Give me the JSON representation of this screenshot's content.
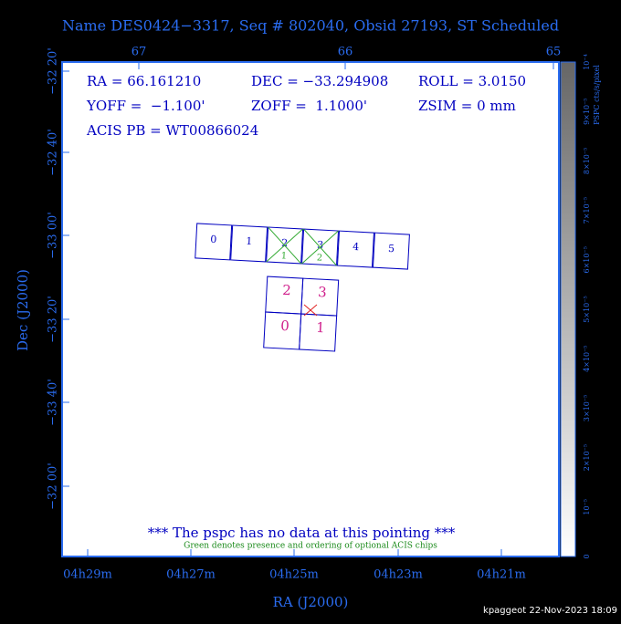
{
  "title": "Name DES0424−3317, Seq # 802040, Obsid 27193, ST Scheduled",
  "top_axis": [
    "67",
    "66",
    "65"
  ],
  "left_axis": [
    "−32 20'",
    "−32 40'",
    "−33 00'",
    "−33 20'",
    "−33 40'",
    "−32 00'"
  ],
  "bottom_axis": [
    "04h29m",
    "04h27m",
    "04h25m",
    "04h23m",
    "04h21m"
  ],
  "x_label": "RA (J2000)",
  "y_label": "Dec (J2000)",
  "info": [
    "RA = 66.161210",
    "DEC = −33.294908",
    "ROLL = 3.0150",
    "YOFF =  −1.100'",
    "ZOFF =  1.1000'",
    "ZSIM = 0 mm",
    "ACIS PB = WT00866024"
  ],
  "s_chips": [
    "0",
    "1",
    "2",
    "3",
    "4",
    "5"
  ],
  "optional_order": [
    "1",
    "2"
  ],
  "i_chips": [
    "2",
    "3",
    "0",
    "1"
  ],
  "message": "*** The pspc has no data at this pointing ***",
  "note": "Green denotes presence and ordering of optional ACIS chips",
  "colorbar": {
    "label": "PSPC cts/s/pixel",
    "ticks": [
      "0",
      "10⁻⁵",
      "2×10⁻⁵",
      "3×10⁻⁵",
      "4×10⁻⁵",
      "5×10⁻⁵",
      "6×10⁻⁵",
      "7×10⁻⁵",
      "8×10⁻⁵",
      "9×10⁻⁵",
      "10⁻⁴"
    ]
  },
  "footer": "kpaggeot 22-Nov-2023 18:09"
}
